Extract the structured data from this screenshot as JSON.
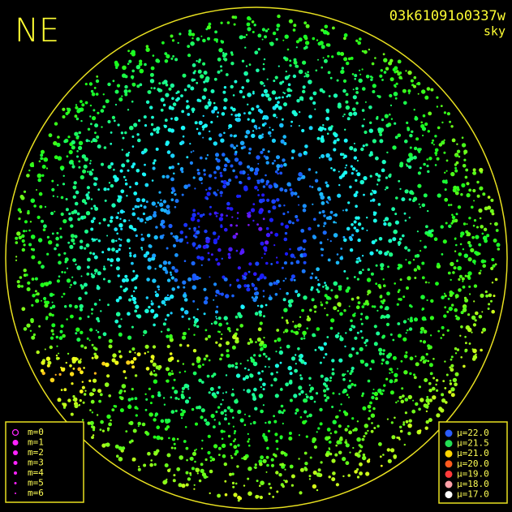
{
  "header": {
    "corner": "NE",
    "frame_id": "03k61091o0337w",
    "mode": "sky"
  },
  "magnitude_legend": {
    "items": [
      {
        "label": "m=0"
      },
      {
        "label": "m=1"
      },
      {
        "label": "m=2"
      },
      {
        "label": "m=3"
      },
      {
        "label": "m=4"
      },
      {
        "label": "m=5"
      },
      {
        "label": "m=6"
      }
    ]
  },
  "brightness_legend": {
    "items": [
      {
        "label": "μ=22.0",
        "color": "#2a5cff"
      },
      {
        "label": "μ=21.5",
        "color": "#22dd55"
      },
      {
        "label": "μ=21.0",
        "color": "#ffd400"
      },
      {
        "label": "μ=20.0",
        "color": "#ff5a1e"
      },
      {
        "label": "μ=19.0",
        "color": "#ff3a3a"
      },
      {
        "label": "μ=18.0",
        "color": "#ffa0a8"
      },
      {
        "label": "μ=17.0",
        "color": "#ffffff"
      }
    ]
  }
}
